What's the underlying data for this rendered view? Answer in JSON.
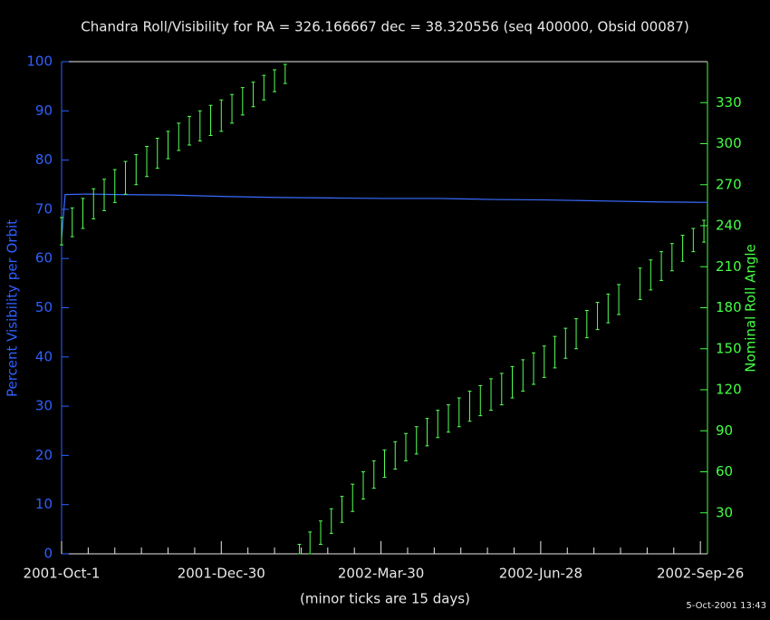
{
  "chart_data": {
    "type": "combo",
    "title": "Chandra Roll/Visibility for RA = 326.166667 dec = 38.320556 (seq 400000, Obsid 00087)",
    "xlabel": "(minor ticks are 15 days)",
    "ylabel": "Percent Visibility per Orbit",
    "y2label": "Nominal Roll Angle",
    "footer": "5-Oct-2001 13:43",
    "xlim": [
      "2001-10-01",
      "2002-09-30"
    ],
    "xticks": [
      {
        "value": "2001-10-01",
        "label": "2001-Oct-1"
      },
      {
        "value": "2001-12-30",
        "label": "2001-Dec-30"
      },
      {
        "value": "2002-03-30",
        "label": "2002-Mar-30"
      },
      {
        "value": "2002-06-28",
        "label": "2002-Jun-28"
      },
      {
        "value": "2002-09-26",
        "label": "2002-Sep-26"
      }
    ],
    "ylim": [
      0,
      100
    ],
    "yticks": [
      0,
      10,
      20,
      30,
      40,
      50,
      60,
      70,
      80,
      90,
      100
    ],
    "y2lim": [
      0,
      360
    ],
    "y2ticks": [
      30,
      60,
      90,
      120,
      150,
      180,
      210,
      240,
      270,
      300,
      330
    ],
    "y_color": "#2f5fff",
    "y2_color": "#44ff44",
    "series": [
      {
        "type": "line",
        "color": "#3a6cff",
        "x": [
          "2001-10-01",
          "2001-10-03",
          "2001-10-16",
          "2001-11-01",
          "2001-12-01",
          "2002-01-01",
          "2002-02-01",
          "2002-03-01",
          "2002-04-01",
          "2002-05-01",
          "2002-06-01",
          "2002-07-01",
          "2002-08-01",
          "2002-09-01",
          "2002-09-30"
        ],
        "values": [
          64,
          73,
          73.1,
          73,
          72.9,
          72.6,
          72.4,
          72.3,
          72.2,
          72.2,
          72.0,
          71.9,
          71.7,
          71.5,
          71.4
        ]
      },
      {
        "type": "errorbar",
        "axis": "y2",
        "color": "#55ff55",
        "x": [
          "2001-10-01",
          "2001-10-07",
          "2001-10-13",
          "2001-10-19",
          "2001-10-25",
          "2001-10-31",
          "2001-11-06",
          "2001-11-12",
          "2001-11-18",
          "2001-11-24",
          "2001-11-30",
          "2001-12-06",
          "2001-12-12",
          "2001-12-18",
          "2001-12-24",
          "2001-12-30",
          "2002-01-05",
          "2002-01-11",
          "2002-01-17",
          "2002-01-23",
          "2002-01-29",
          "2002-02-04",
          "2002-02-12",
          "2002-02-18",
          "2002-02-24",
          "2002-03-02",
          "2002-03-08",
          "2002-03-14",
          "2002-03-20",
          "2002-03-26",
          "2002-04-01",
          "2002-04-07",
          "2002-04-13",
          "2002-04-19",
          "2002-04-25",
          "2002-05-01",
          "2002-05-07",
          "2002-05-13",
          "2002-05-19",
          "2002-05-25",
          "2002-05-31",
          "2002-06-06",
          "2002-06-12",
          "2002-06-18",
          "2002-06-24",
          "2002-06-30",
          "2002-07-06",
          "2002-07-12",
          "2002-07-18",
          "2002-07-24",
          "2002-07-30",
          "2002-08-05",
          "2002-08-11",
          "2002-08-23",
          "2002-08-29",
          "2002-09-04",
          "2002-09-10",
          "2002-09-16",
          "2002-09-22",
          "2002-09-28"
        ],
        "low": [
          226,
          232,
          238,
          245,
          251,
          257,
          263,
          270,
          276,
          282,
          289,
          295,
          299,
          302,
          306,
          309,
          315,
          321,
          327,
          332,
          338,
          344,
          0,
          0,
          7,
          15,
          23,
          31,
          40,
          48,
          56,
          62,
          68,
          73,
          79,
          85,
          89,
          93,
          97,
          101,
          105,
          109,
          114,
          119,
          124,
          129,
          136,
          143,
          150,
          158,
          164,
          169,
          175,
          186,
          193,
          200,
          207,
          214,
          221,
          228
        ],
        "high": [
          246,
          253,
          260,
          267,
          274,
          281,
          287,
          292,
          298,
          304,
          309,
          315,
          320,
          324,
          328,
          332,
          336,
          341,
          345,
          350,
          354,
          358,
          7,
          16,
          24,
          33,
          42,
          51,
          60,
          68,
          76,
          82,
          88,
          93,
          99,
          105,
          109,
          114,
          119,
          123,
          128,
          132,
          137,
          142,
          147,
          152,
          159,
          165,
          172,
          178,
          184,
          190,
          197,
          209,
          215,
          221,
          227,
          233,
          238,
          244
        ]
      }
    ]
  }
}
